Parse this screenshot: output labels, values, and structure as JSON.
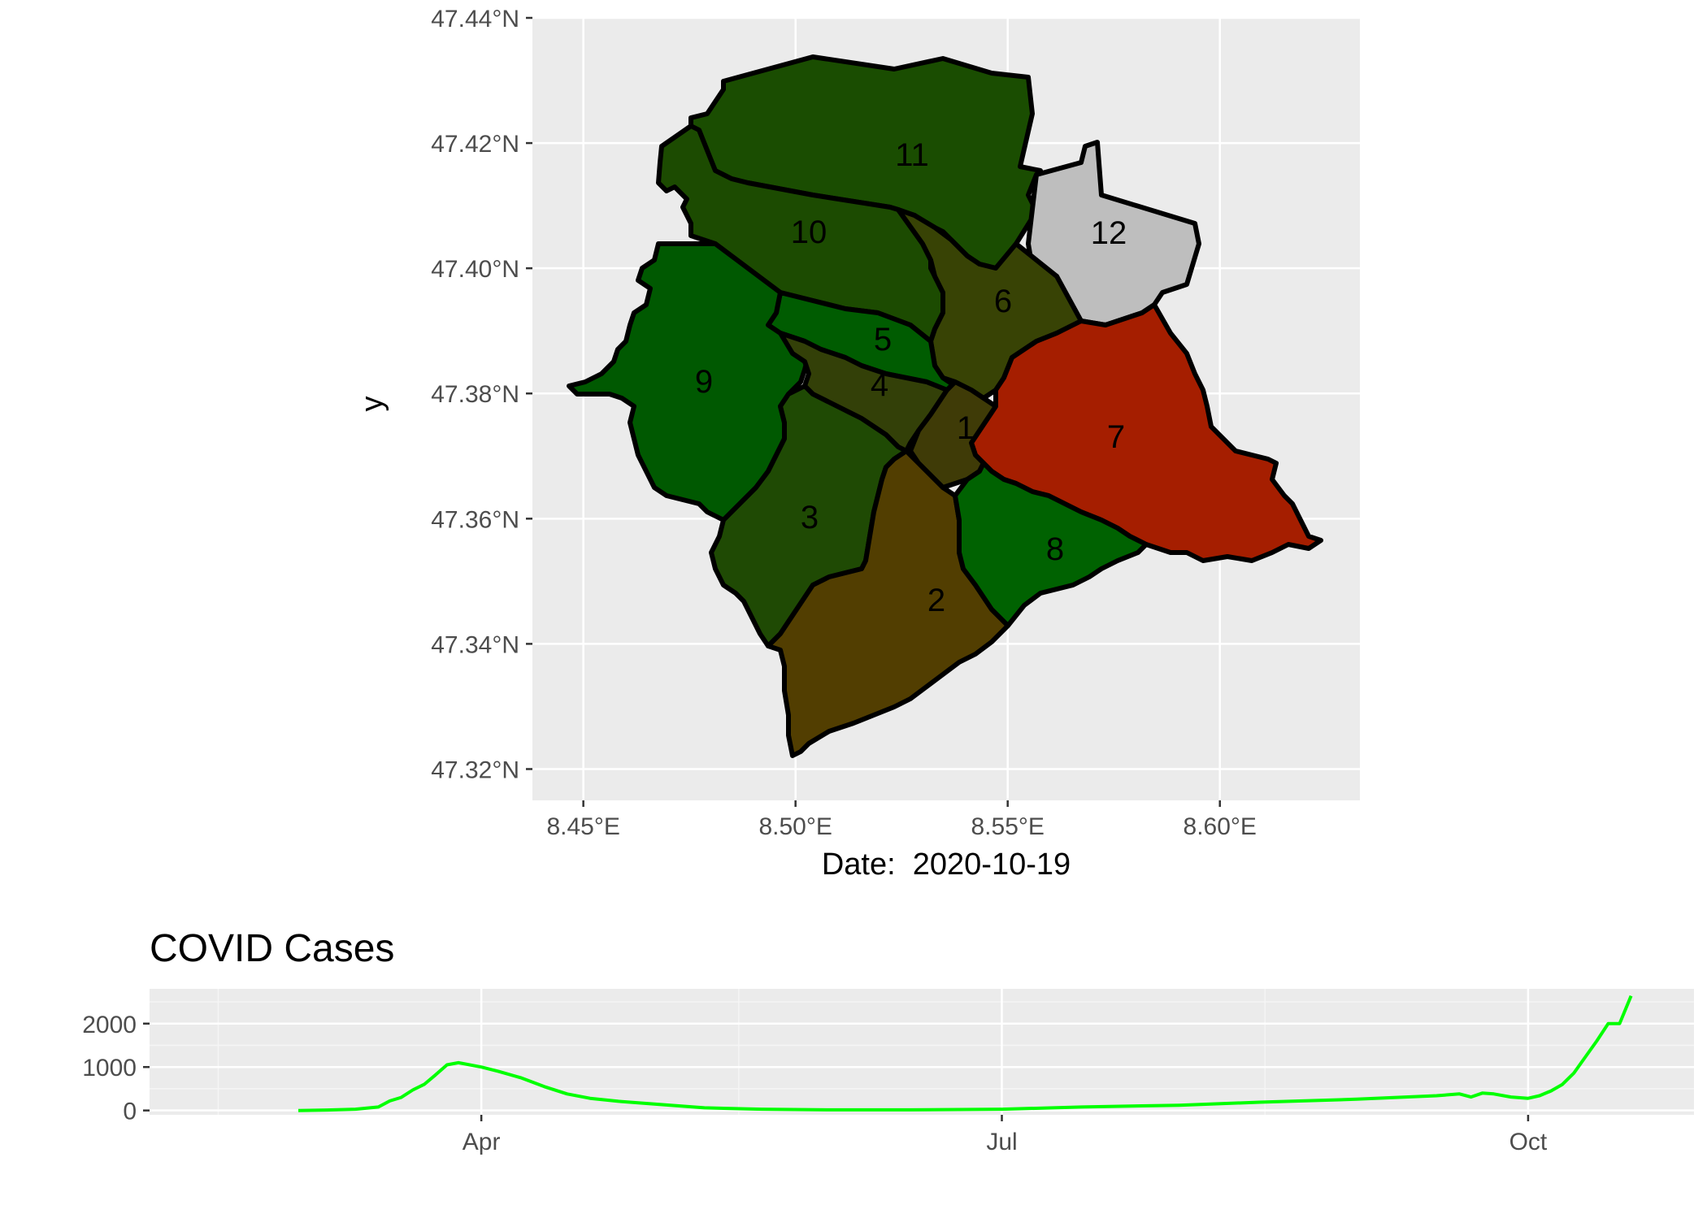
{
  "chart_data": [
    {
      "type": "choropleth-map",
      "caption_prefix": "Date:",
      "caption_value": "2020-10-19",
      "caption_display": "Date:  2020-10-19",
      "ylabel": "y",
      "xlabel": "",
      "x_ticks": [
        "8.45°E",
        "8.50°E",
        "8.55°E",
        "8.60°E"
      ],
      "y_ticks": [
        "47.44°N",
        "47.42°N",
        "47.40°N",
        "47.38°N",
        "47.36°N",
        "47.34°N",
        "47.32°N"
      ],
      "xlim": [
        8.438,
        8.633
      ],
      "ylim": [
        47.315,
        47.44
      ],
      "grid": true,
      "districts": [
        {
          "label": "1",
          "color": "#3f3b07"
        },
        {
          "label": "2",
          "color": "#523e01"
        },
        {
          "label": "3",
          "color": "#1f4a04"
        },
        {
          "label": "4",
          "color": "#334008"
        },
        {
          "label": "5",
          "color": "#005c01"
        },
        {
          "label": "6",
          "color": "#384305"
        },
        {
          "label": "7",
          "color": "#a51e00"
        },
        {
          "label": "8",
          "color": "#006201"
        },
        {
          "label": "9",
          "color": "#005901"
        },
        {
          "label": "10",
          "color": "#1c4b01"
        },
        {
          "label": "11",
          "color": "#1a4d01"
        },
        {
          "label": "12",
          "color": "#bebebe"
        }
      ]
    },
    {
      "type": "line",
      "title": "COVID Cases",
      "xlabel": "",
      "ylabel": "",
      "x_ticks": [
        "Apr",
        "Jul",
        "Oct"
      ],
      "y_ticks": [
        "0",
        "1000",
        "2000"
      ],
      "ylim": [
        -100,
        2800
      ],
      "xlim": [
        "2020-02-03",
        "2020-10-30"
      ],
      "grid": true,
      "series_color": "#00ff00",
      "x": [
        "2020-02-29",
        "2020-03-05",
        "2020-03-10",
        "2020-03-14",
        "2020-03-16",
        "2020-03-18",
        "2020-03-20",
        "2020-03-22",
        "2020-03-24",
        "2020-03-26",
        "2020-03-28",
        "2020-04-01",
        "2020-04-04",
        "2020-04-08",
        "2020-04-12",
        "2020-04-16",
        "2020-04-20",
        "2020-04-25",
        "2020-05-01",
        "2020-05-10",
        "2020-05-20",
        "2020-06-01",
        "2020-06-15",
        "2020-07-01",
        "2020-07-15",
        "2020-08-01",
        "2020-08-15",
        "2020-09-01",
        "2020-09-15",
        "2020-09-19",
        "2020-09-21",
        "2020-09-23",
        "2020-09-25",
        "2020-09-28",
        "2020-10-01",
        "2020-10-03",
        "2020-10-05",
        "2020-10-07",
        "2020-10-09",
        "2020-10-11",
        "2020-10-13",
        "2020-10-15",
        "2020-10-17",
        "2020-10-19"
      ],
      "y": [
        0,
        10,
        30,
        80,
        220,
        300,
        470,
        600,
        820,
        1050,
        1100,
        1000,
        900,
        750,
        550,
        380,
        280,
        210,
        150,
        60,
        30,
        15,
        15,
        30,
        80,
        120,
        190,
        260,
        340,
        380,
        310,
        400,
        380,
        310,
        280,
        340,
        450,
        600,
        860,
        1230,
        1600,
        2000,
        2000,
        2640
      ]
    }
  ]
}
